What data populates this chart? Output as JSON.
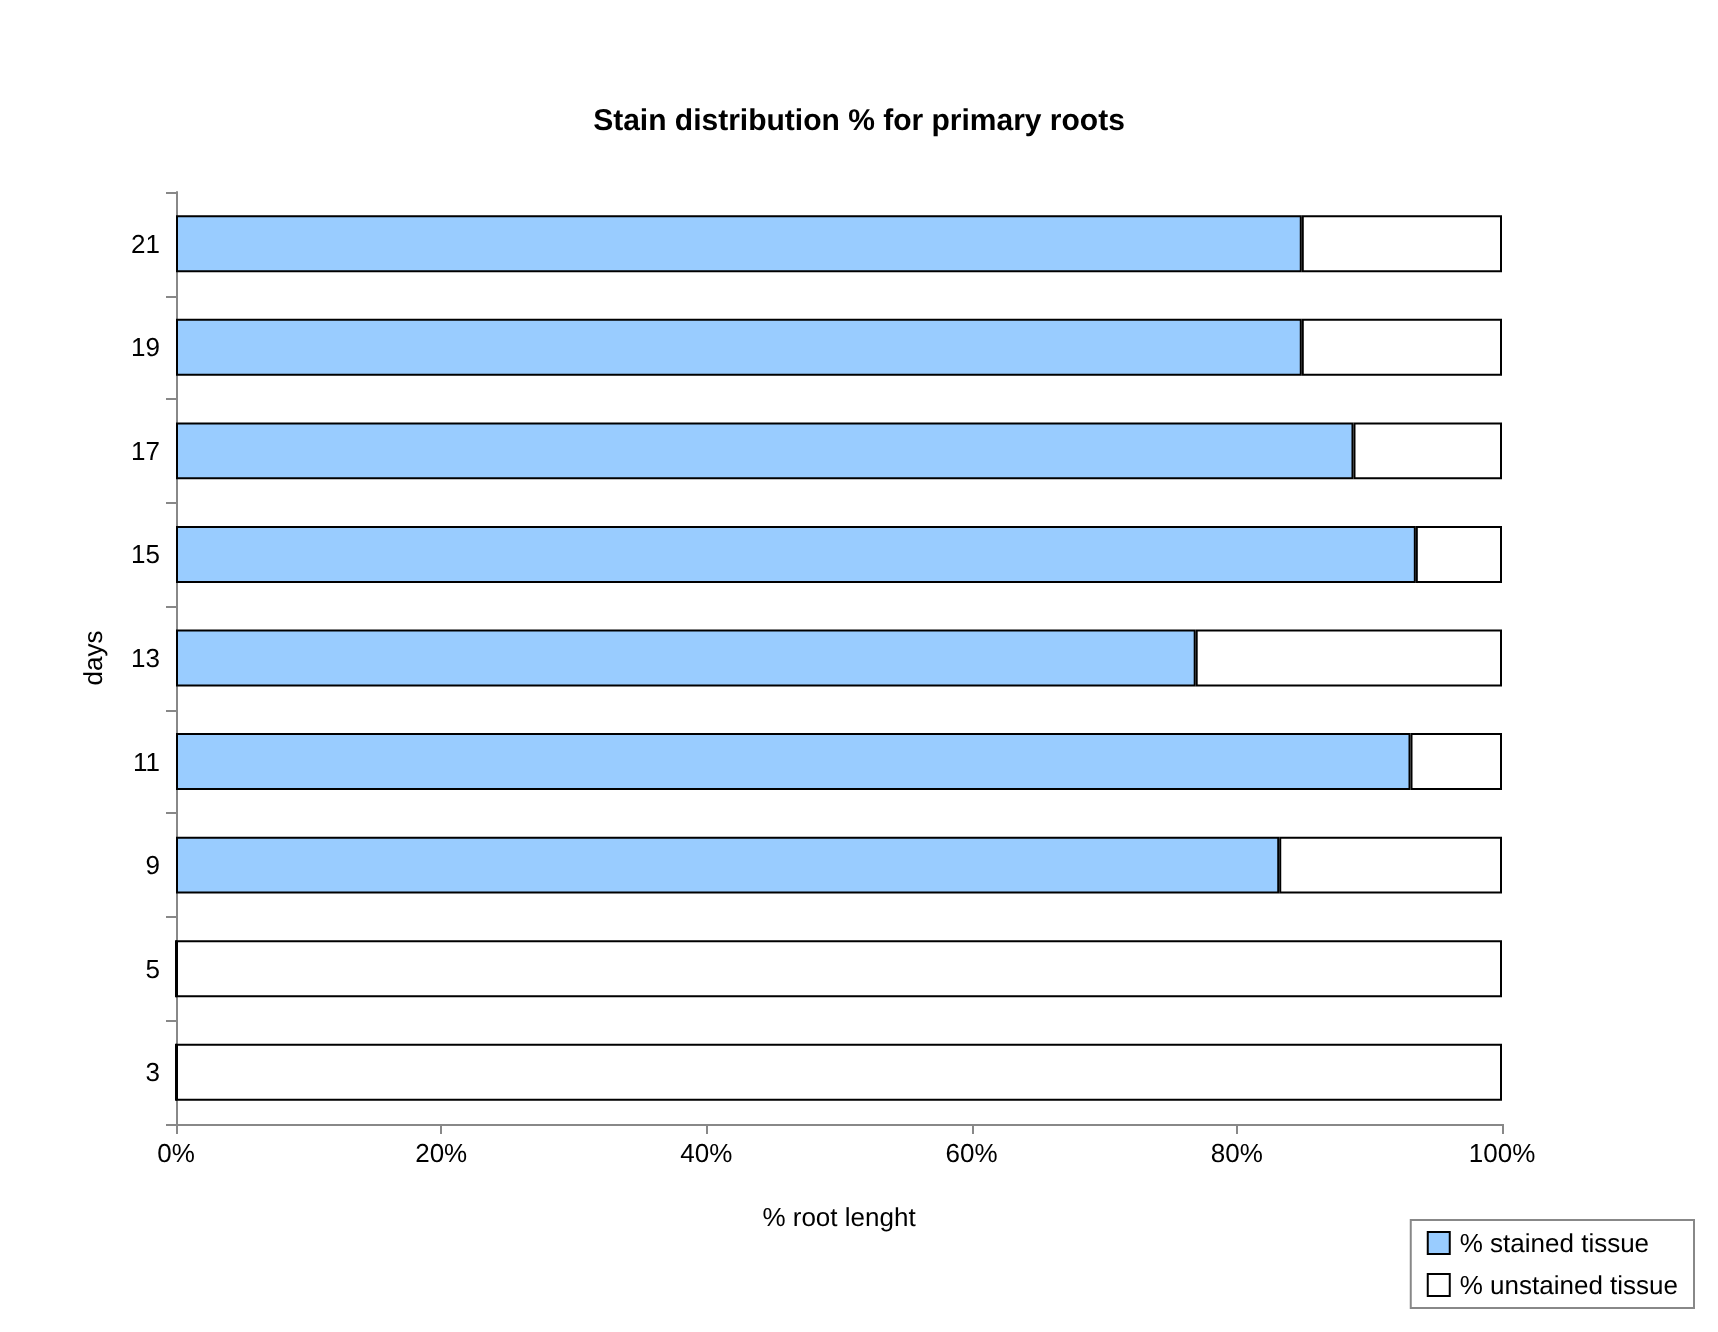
{
  "chart_data": {
    "type": "bar",
    "orientation": "horizontal",
    "stacked": true,
    "title": "Stain distribution % for primary roots",
    "xlabel": "% root lenght",
    "ylabel": "days",
    "categories": [
      "21",
      "19",
      "17",
      "15",
      "13",
      "11",
      "9",
      "5",
      "3"
    ],
    "series": [
      {
        "name": "% stained tissue",
        "color": "#99ccff",
        "values": [
          84.9,
          84.9,
          88.8,
          93.5,
          76.9,
          93.1,
          83.2,
          0,
          0
        ]
      },
      {
        "name": "% unstained tissue",
        "color": "#ffffff",
        "values": [
          15.1,
          15.1,
          11.2,
          6.5,
          23.1,
          6.9,
          16.8,
          100,
          100
        ]
      }
    ],
    "xlim": [
      0,
      100
    ],
    "xticks": [
      {
        "value": 0,
        "label": "0%"
      },
      {
        "value": 20,
        "label": "20%"
      },
      {
        "value": 40,
        "label": "40%"
      },
      {
        "value": 60,
        "label": "60%"
      },
      {
        "value": 80,
        "label": "80%"
      },
      {
        "value": 100,
        "label": "100%"
      }
    ],
    "grid": false,
    "legend": "bottom right"
  }
}
